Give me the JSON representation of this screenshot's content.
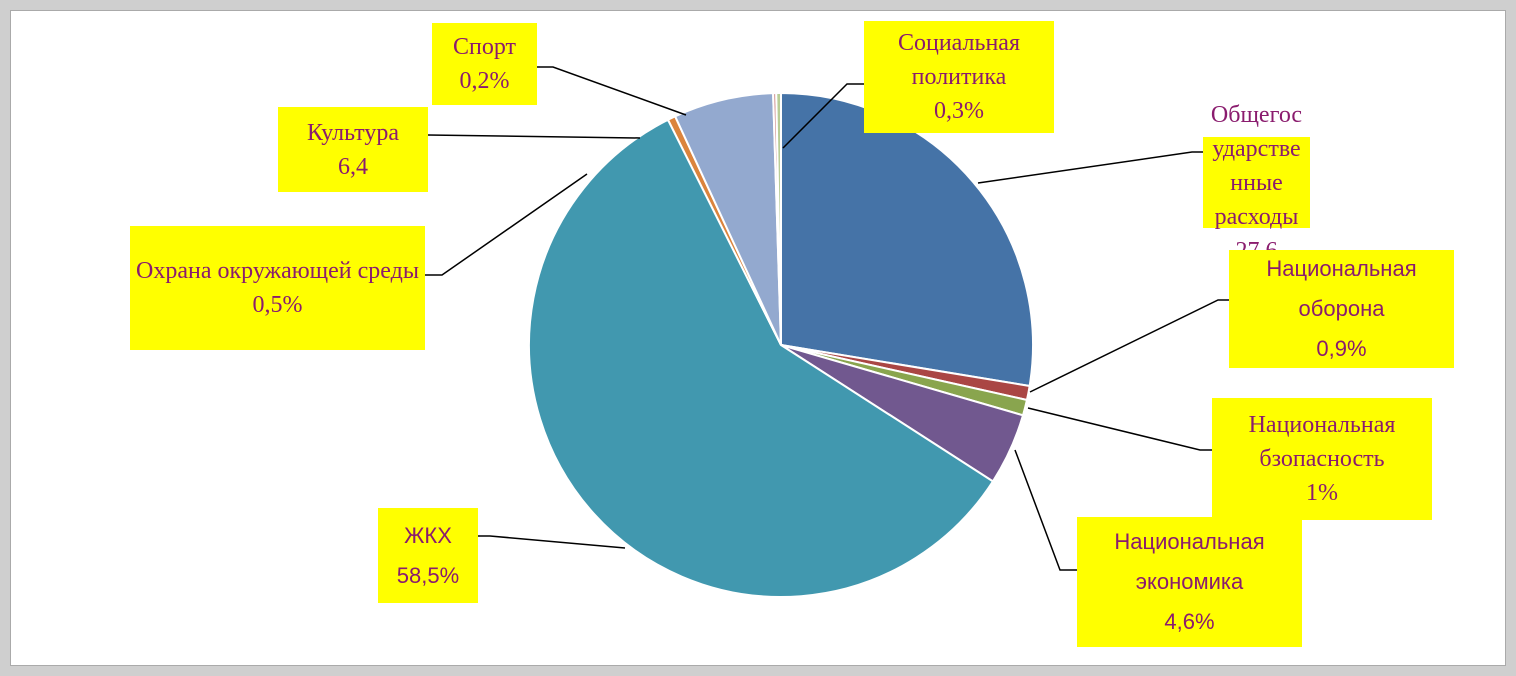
{
  "chart_data": {
    "type": "pie",
    "categories": [
      "Общегосударственные расходы",
      "Национальная оборона",
      "Национальная бзопасность",
      "Национальная экономика",
      "ЖКХ",
      "Охрана окружающей среды",
      "Культура",
      "Спорт",
      "Социальная политика"
    ],
    "values": [
      27.6,
      0.9,
      1,
      4.6,
      58.5,
      0.5,
      6.4,
      0.2,
      0.3
    ],
    "value_labels": [
      "27,6",
      "0,9%",
      "1%",
      "4,6%",
      "58,5%",
      "0,5%",
      "6,4",
      "0,2%",
      "0,3%"
    ],
    "colors": [
      "#4573a7",
      "#aa4644",
      "#89a54e",
      "#71588f",
      "#4198af",
      "#db843d",
      "#93a9cf",
      "#d19392",
      "#b9cd96"
    ]
  }
}
